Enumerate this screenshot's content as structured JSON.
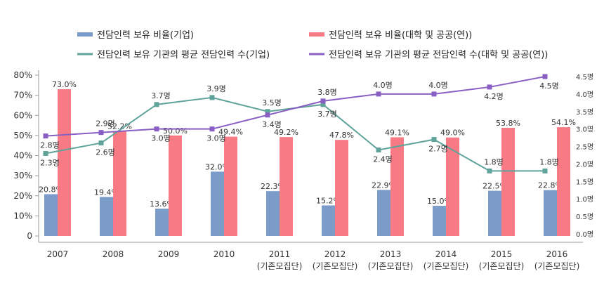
{
  "chart_data": {
    "type": "bar+line",
    "categories": [
      "2007",
      "2008",
      "2009",
      "2010",
      "2011\n(기존모집단)",
      "2012\n(기존모집단)",
      "2013\n(기존모집단)",
      "2014\n(기존모집단)",
      "2015\n(기존모집단)",
      "2016\n(기존모집단)"
    ],
    "left_axis": {
      "ylim": [
        0,
        80
      ],
      "ticks": [
        "0",
        "10%",
        "20%",
        "30%",
        "40%",
        "50%",
        "60%",
        "70%",
        "80%"
      ]
    },
    "right_axis": {
      "ylim": [
        0,
        4.5
      ],
      "ticks": [
        "0.0명",
        "0.5명",
        "1.0명",
        "1.5명",
        "2.0명",
        "2.5명",
        "3.0명",
        "3.5명",
        "4.0명",
        "4.5명"
      ]
    },
    "legend_placement": "top",
    "series": [
      {
        "name": "전담인력 보유 비율(기업)",
        "type": "bar",
        "axis": "left",
        "color": "#7b9bc8",
        "values": [
          20.8,
          19.4,
          13.6,
          32.0,
          22.3,
          15.2,
          22.9,
          15.0,
          22.5,
          22.8
        ],
        "labels": [
          "20.8%",
          "19.4%",
          "13.6%",
          "32.0%",
          "22.3%",
          "15.2%",
          "22.9%",
          "15.0%",
          "22.5%",
          "22.8%"
        ]
      },
      {
        "name": "전담인력 보유 비율(대학 및 공공(연))",
        "type": "bar",
        "axis": "left",
        "color": "#f77a84",
        "values": [
          73.0,
          52.2,
          50.0,
          49.4,
          49.2,
          47.8,
          49.1,
          49.0,
          53.8,
          54.1
        ],
        "labels": [
          "73.0%",
          "52.2%",
          "50.0%",
          "49.4%",
          "49.2%",
          "47.8%",
          "49.1%",
          "49.0%",
          "53.8%",
          "54.1%"
        ]
      },
      {
        "name": "전담인력 보유 기관의 평균 전담인력 수(기업)",
        "type": "line",
        "axis": "right",
        "color": "#5fa39a",
        "values": [
          2.3,
          2.6,
          3.7,
          3.9,
          3.5,
          3.7,
          2.4,
          2.7,
          1.8,
          1.8
        ],
        "labels": [
          "2.3명",
          "2.6명",
          "3.7명",
          "3.9명",
          "3.5명",
          "3.7명",
          "2.4명",
          "2.7명",
          "1.8명",
          "1.8명"
        ]
      },
      {
        "name": "전담인력 보유 기관의 평균 전담인력 수(대학 및 공공(연))",
        "type": "line",
        "axis": "right",
        "color": "#8a5fc4",
        "values": [
          2.8,
          2.9,
          3.0,
          3.0,
          3.4,
          3.8,
          4.0,
          4.0,
          4.2,
          4.5
        ],
        "labels": [
          "2.8명",
          "2.9명",
          "3.0명",
          "3.0명",
          "3.4명",
          "3.8명",
          "4.0명",
          "4.0명",
          "4.2명",
          "4.5명"
        ]
      }
    ]
  }
}
